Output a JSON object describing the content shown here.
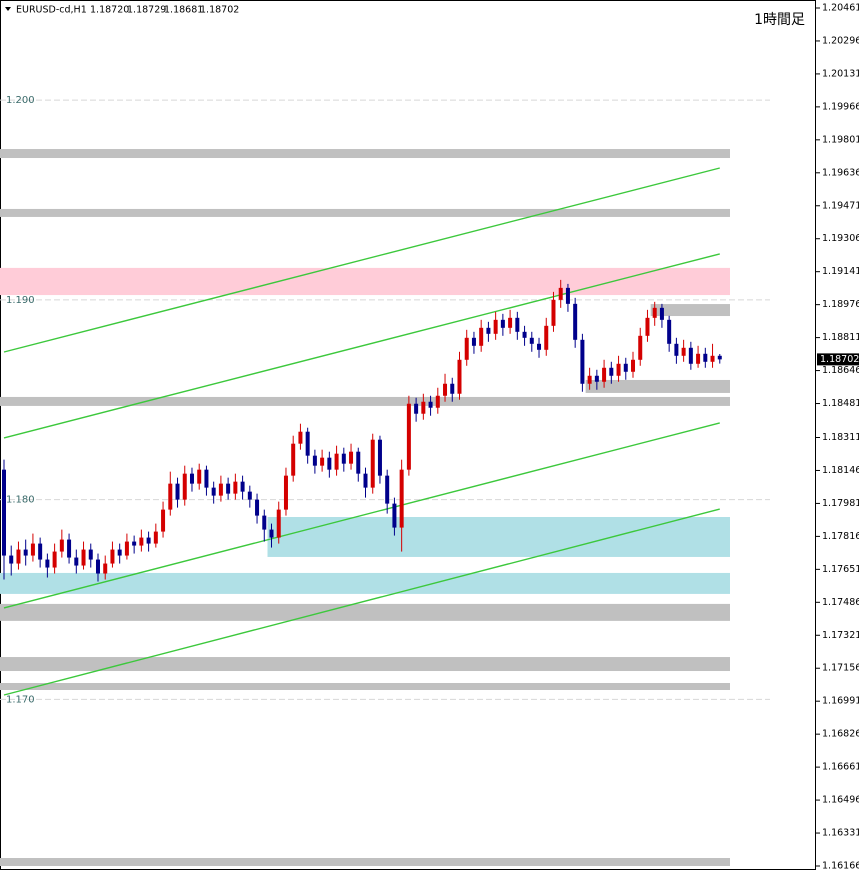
{
  "chart_data": {
    "type": "candlestick",
    "header": {
      "symbol": "EURUSD-cd,H1",
      "values": [
        1.1872,
        1.18729,
        1.18681,
        1.18702
      ],
      "value_labels": [
        "1.18720",
        "1.18729",
        "1.18681",
        "1.18702"
      ]
    },
    "timeframe": "1時間足",
    "ylim": [
      1.16151,
      1.20501
    ],
    "yticks": [
      1.20461,
      1.20296,
      1.20131,
      1.19966,
      1.19801,
      1.19636,
      1.19471,
      1.19306,
      1.19141,
      1.18976,
      1.18811,
      1.18646,
      1.18481,
      1.18311,
      1.18146,
      1.17981,
      1.17816,
      1.17651,
      1.17486,
      1.17321,
      1.17156,
      1.16991,
      1.16826,
      1.16661,
      1.16496,
      1.16331,
      1.16166
    ],
    "current_price": {
      "value": 1.18702,
      "label": "1.18702"
    },
    "levels": [
      {
        "value": 1.2,
        "label": "1.200"
      },
      {
        "value": 1.19,
        "label": "1.190"
      },
      {
        "value": 1.18,
        "label": "1.180"
      },
      {
        "value": 1.17,
        "label": "1.170"
      }
    ],
    "up_color": "#d40000",
    "down_color": "#00008b",
    "open": [
      1.1815,
      1.1772,
      1.1768,
      1.1775,
      1.1772,
      1.1778,
      1.177,
      1.1766,
      1.1774,
      1.178,
      1.1771,
      1.1767,
      1.1775,
      1.177,
      1.1763,
      1.1768,
      1.1775,
      1.1772,
      1.1779,
      1.1777,
      1.1781,
      1.1778,
      1.1784,
      1.1795,
      1.1808,
      1.18,
      1.1813,
      1.1808,
      1.1815,
      1.1806,
      1.1802,
      1.1808,
      1.1803,
      1.1809,
      1.1804,
      1.18,
      1.1792,
      1.1785,
      1.1781,
      1.1795,
      1.1812,
      1.1828,
      1.1834,
      1.1822,
      1.1817,
      1.1821,
      1.1815,
      1.1823,
      1.1818,
      1.1824,
      1.1813,
      1.1806,
      1.183,
      1.1812,
      1.1798,
      1.1786,
      1.1815,
      1.1848,
      1.1843,
      1.1849,
      1.1846,
      1.1852,
      1.1858,
      1.1853,
      1.187,
      1.1881,
      1.1877,
      1.1886,
      1.1883,
      1.189,
      1.1886,
      1.1891,
      1.1884,
      1.1881,
      1.1878,
      1.1875,
      1.1887,
      1.19,
      1.1906,
      1.1898,
      1.188,
      1.1858,
      1.1862,
      1.1859,
      1.1866,
      1.1862,
      1.1868,
      1.1864,
      1.187,
      1.1882,
      1.1891,
      1.1896,
      1.189,
      1.1878,
      1.1872,
      1.1876,
      1.1868,
      1.1873,
      1.1869,
      1.1872
    ],
    "high": [
      1.182,
      1.1777,
      1.1779,
      1.178,
      1.1783,
      1.1781,
      1.1773,
      1.1778,
      1.1785,
      1.1783,
      1.1775,
      1.1779,
      1.1778,
      1.1773,
      1.1772,
      1.1779,
      1.1778,
      1.1783,
      1.1782,
      1.1785,
      1.1784,
      1.1788,
      1.1799,
      1.1814,
      1.1811,
      1.1817,
      1.1816,
      1.1818,
      1.1817,
      1.1809,
      1.1812,
      1.1811,
      1.1813,
      1.1812,
      1.1807,
      1.1803,
      1.1795,
      1.1788,
      1.1799,
      1.1816,
      1.1832,
      1.1838,
      1.1836,
      1.1825,
      1.1825,
      1.1824,
      1.1827,
      1.1826,
      1.1828,
      1.1826,
      1.1816,
      1.1833,
      1.1832,
      1.1815,
      1.1801,
      1.182,
      1.1852,
      1.1851,
      1.1853,
      1.1852,
      1.1856,
      1.1863,
      1.1861,
      1.1874,
      1.1885,
      1.1884,
      1.189,
      1.1889,
      1.1894,
      1.1893,
      1.1895,
      1.1894,
      1.1887,
      1.1884,
      1.1881,
      1.1891,
      1.1904,
      1.191,
      1.1908,
      1.1901,
      1.1883,
      1.1866,
      1.1865,
      1.187,
      1.1869,
      1.1872,
      1.1871,
      1.1874,
      1.1886,
      1.1895,
      1.1899,
      1.1898,
      1.1892,
      1.1881,
      1.188,
      1.1879,
      1.1877,
      1.1876,
      1.1878,
      1.18729
    ],
    "low": [
      1.176,
      1.1762,
      1.1765,
      1.1767,
      1.1769,
      1.1766,
      1.1761,
      1.1763,
      1.1771,
      1.1768,
      1.1763,
      1.1765,
      1.1766,
      1.1759,
      1.176,
      1.1766,
      1.1768,
      1.177,
      1.1773,
      1.1774,
      1.1774,
      1.1776,
      1.1781,
      1.1792,
      1.1796,
      1.1797,
      1.1804,
      1.1805,
      1.1802,
      1.1798,
      1.1799,
      1.18,
      1.18,
      1.18,
      1.1796,
      1.1788,
      1.1779,
      1.1776,
      1.1778,
      1.1792,
      1.1809,
      1.1825,
      1.1818,
      1.1813,
      1.1814,
      1.1811,
      1.1812,
      1.1814,
      1.1815,
      1.1809,
      1.1801,
      1.1803,
      1.1808,
      1.1793,
      1.1782,
      1.1774,
      1.1812,
      1.1839,
      1.184,
      1.1842,
      1.1843,
      1.1849,
      1.1849,
      1.185,
      1.1867,
      1.1873,
      1.1874,
      1.1879,
      1.188,
      1.1882,
      1.1883,
      1.188,
      1.1877,
      1.1874,
      1.1871,
      1.1872,
      1.1884,
      1.1896,
      1.1894,
      1.1876,
      1.1854,
      1.1855,
      1.1855,
      1.1856,
      1.1858,
      1.1859,
      1.186,
      1.1861,
      1.1867,
      1.1879,
      1.1887,
      1.1886,
      1.1874,
      1.1868,
      1.1869,
      1.1865,
      1.1866,
      1.1866,
      1.1866,
      1.18681
    ],
    "close": [
      1.1772,
      1.1768,
      1.1775,
      1.1772,
      1.1778,
      1.177,
      1.1766,
      1.1774,
      1.178,
      1.1771,
      1.1767,
      1.1775,
      1.177,
      1.1763,
      1.1768,
      1.1775,
      1.1772,
      1.1779,
      1.1777,
      1.1781,
      1.1778,
      1.1784,
      1.1795,
      1.1808,
      1.18,
      1.1813,
      1.1808,
      1.1815,
      1.1806,
      1.1802,
      1.1808,
      1.1803,
      1.1809,
      1.1804,
      1.18,
      1.1792,
      1.1785,
      1.1781,
      1.1795,
      1.1812,
      1.1828,
      1.1834,
      1.1822,
      1.1817,
      1.1821,
      1.1815,
      1.1823,
      1.1818,
      1.1824,
      1.1813,
      1.1806,
      1.183,
      1.1812,
      1.1798,
      1.1786,
      1.1815,
      1.1848,
      1.1843,
      1.1849,
      1.1846,
      1.1852,
      1.1858,
      1.1853,
      1.187,
      1.1881,
      1.1877,
      1.1886,
      1.1883,
      1.189,
      1.1886,
      1.1891,
      1.1884,
      1.1881,
      1.1878,
      1.1875,
      1.1887,
      1.19,
      1.1906,
      1.1898,
      1.188,
      1.1858,
      1.1862,
      1.1859,
      1.1866,
      1.1862,
      1.1868,
      1.1864,
      1.187,
      1.1882,
      1.1891,
      1.1896,
      1.189,
      1.1878,
      1.1872,
      1.1876,
      1.1868,
      1.1873,
      1.1869,
      1.1872,
      1.18702
    ],
    "zones": [
      {
        "color": "#c0c0c0",
        "low": 1.1971,
        "high": 1.19755,
        "from": 0
      },
      {
        "color": "#c0c0c0",
        "low": 1.19415,
        "high": 1.19455,
        "from": 0
      },
      {
        "color": "#ffccd8",
        "low": 1.19024,
        "high": 1.1916,
        "from": 0
      },
      {
        "color": "#c0c0c0",
        "low": 1.18919,
        "high": 1.18979,
        "from": 90
      },
      {
        "color": "#c0c0c0",
        "low": 1.18534,
        "high": 1.18599,
        "from": 81
      },
      {
        "color": "#c0c0c0",
        "low": 1.18469,
        "high": 1.18514,
        "from": 0
      },
      {
        "color": "#b0e0e6",
        "low": 1.17713,
        "high": 1.17913,
        "from": 37
      },
      {
        "color": "#b0e0e6",
        "low": 1.17528,
        "high": 1.17633,
        "from": 0
      },
      {
        "color": "#c0c0c0",
        "low": 1.17393,
        "high": 1.17478,
        "from": 0
      },
      {
        "color": "#c0c0c0",
        "low": 1.17142,
        "high": 1.17212,
        "from": 0
      },
      {
        "color": "#c0c0c0",
        "low": 1.17047,
        "high": 1.17082,
        "from": 0
      },
      {
        "color": "#c0c0c0",
        "low": 1.16166,
        "high": 1.16206,
        "from": 0
      }
    ],
    "trend_color": "#3cc83c",
    "trend_lines": [
      {
        "from": 0,
        "to": 99,
        "start": 1.18739,
        "end": 1.1966
      },
      {
        "from": 0,
        "to": 99,
        "start": 1.18309,
        "end": 1.1923
      },
      {
        "from": 0,
        "to": 99,
        "start": 1.17458,
        "end": 1.18384
      },
      {
        "from": 0,
        "to": 99,
        "start": 1.17022,
        "end": 1.17953
      }
    ]
  }
}
